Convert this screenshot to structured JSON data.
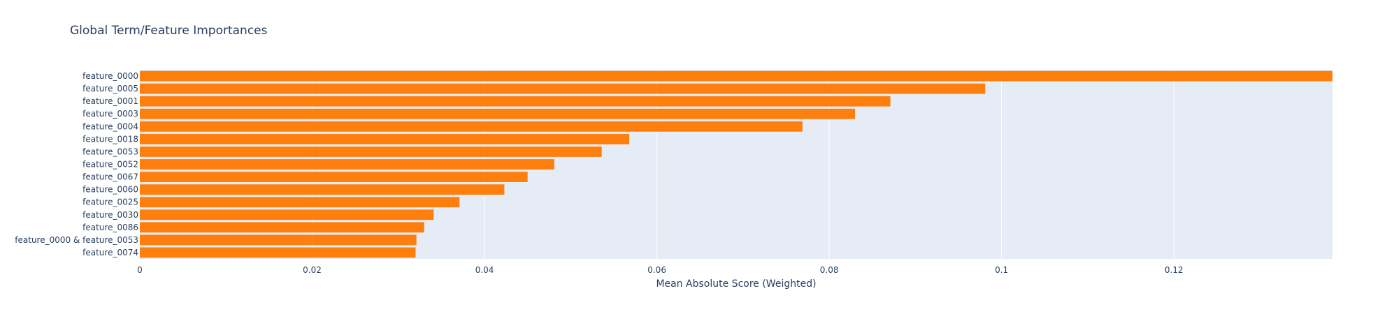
{
  "chart_data": {
    "type": "bar",
    "orientation": "horizontal",
    "title": "Global Term/Feature Importances",
    "xlabel": "Mean Absolute Score (Weighted)",
    "ylabel": "",
    "categories": [
      "feature_0000",
      "feature_0005",
      "feature_0001",
      "feature_0003",
      "feature_0004",
      "feature_0018",
      "feature_0053",
      "feature_0052",
      "feature_0067",
      "feature_0060",
      "feature_0025",
      "feature_0030",
      "feature_0086",
      "feature_0000 & feature_0053",
      "feature_0074"
    ],
    "values": [
      0.1384,
      0.0981,
      0.0871,
      0.083,
      0.0769,
      0.0568,
      0.0536,
      0.0481,
      0.045,
      0.0423,
      0.0371,
      0.0341,
      0.033,
      0.0321,
      0.032
    ],
    "xlim": [
      0,
      0.1384
    ],
    "xticks": [
      0,
      0.02,
      0.04,
      0.06,
      0.08,
      0.1,
      0.12
    ],
    "xtick_labels": [
      "0",
      "0.02",
      "0.04",
      "0.06",
      "0.08",
      "0.1",
      "0.12"
    ],
    "grid": true,
    "legend": "none",
    "colors": {
      "bar": "#ff7f0e",
      "plot_background": "#e5ecf6",
      "grid": "#ffffff",
      "text": "#2a3f5f"
    }
  }
}
